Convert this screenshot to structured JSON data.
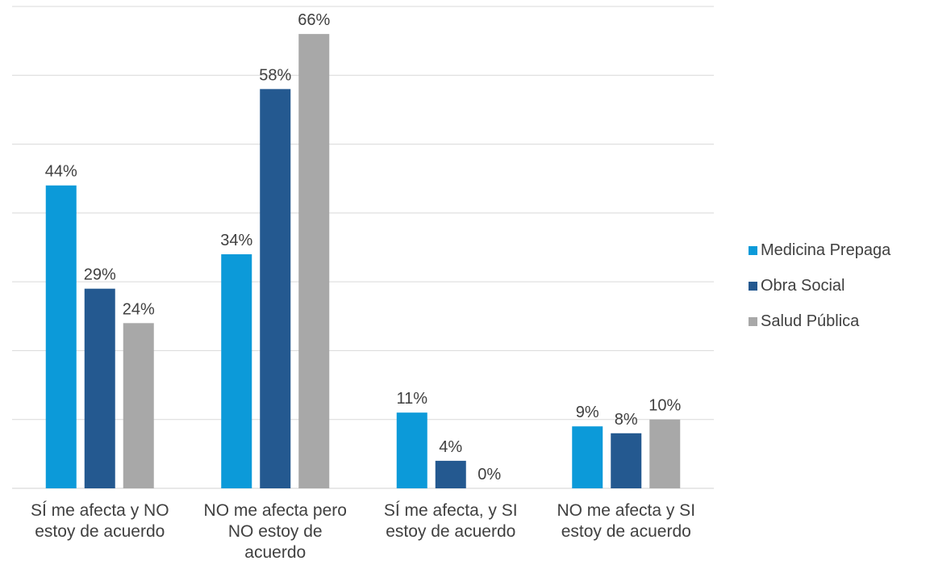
{
  "chart_data": {
    "type": "bar",
    "categories": [
      "SÍ me afecta y NO estoy de acuerdo",
      "NO me afecta pero NO estoy de acuerdo",
      "SÍ me afecta, y SI estoy de acuerdo",
      "NO me afecta y SI estoy de acuerdo"
    ],
    "category_lines": [
      [
        "SÍ me afecta y NO",
        "estoy de acuerdo"
      ],
      [
        "NO me afecta pero",
        "NO estoy de",
        "acuerdo"
      ],
      [
        "SÍ me afecta, y SI",
        "estoy de acuerdo"
      ],
      [
        "NO me afecta y SI",
        "estoy de acuerdo"
      ]
    ],
    "series": [
      {
        "name": "Medicina Prepaga",
        "color": "#0c9ad9",
        "values": [
          44,
          34,
          11,
          9
        ],
        "labels": [
          "44%",
          "34%",
          "11%",
          "9%"
        ]
      },
      {
        "name": "Obra Social",
        "color": "#245990",
        "values": [
          29,
          58,
          4,
          8
        ],
        "labels": [
          "29%",
          "58%",
          "4%",
          "8%"
        ]
      },
      {
        "name": "Salud Pública",
        "color": "#a8a8a8",
        "values": [
          24,
          66,
          0,
          10
        ],
        "labels": [
          "24%",
          "66%",
          "0%",
          "10%"
        ]
      }
    ],
    "ylim": [
      0,
      70
    ],
    "y_grid_step": 10,
    "gridlines": true,
    "y_tick_labels_shown": false,
    "legend_position": "right",
    "data_label_format": "percent",
    "title": "",
    "xlabel": "",
    "ylabel": ""
  }
}
